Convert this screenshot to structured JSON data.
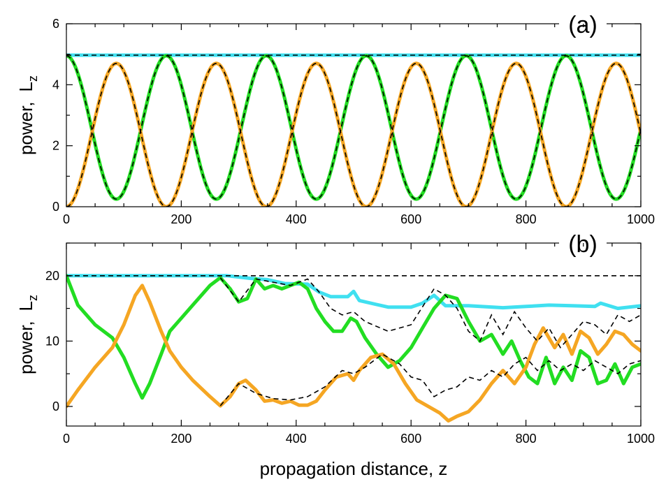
{
  "xlabel": "propagation distance,  z",
  "chart_data": [
    {
      "type": "line",
      "panel_label": "(a)",
      "ylabel_main": "power,",
      "ylabel_symbol": "L",
      "ylabel_sub": "z",
      "xlim": [
        0,
        1000
      ],
      "ylim": [
        0,
        6
      ],
      "xticks": [
        0,
        200,
        400,
        600,
        800,
        1000
      ],
      "yticks": [
        0,
        2,
        4,
        6
      ],
      "grid": false,
      "series": [
        {
          "role": "Lz",
          "color": "#40e0f0",
          "x": [
            0,
            1000
          ],
          "values": [
            4.97,
            4.97
          ]
        },
        {
          "role": "mode-1",
          "color": "#22dd22",
          "analytic": "cosine",
          "mean": 2.6,
          "amplitude": 2.35,
          "period": 174,
          "phase": 0,
          "x_range": [
            0,
            1000
          ]
        },
        {
          "role": "mode-2",
          "color": "#f5a623",
          "analytic": "cosine",
          "mean": 2.35,
          "amplitude": 2.35,
          "period": 174,
          "phase": 0.5,
          "x_range": [
            0,
            1000
          ]
        },
        {
          "role": "reference",
          "color": "#000000",
          "dashed": true,
          "of": [
            "Lz",
            "mode-1",
            "mode-2"
          ]
        }
      ]
    },
    {
      "type": "line",
      "panel_label": "(b)",
      "ylabel_main": "power,",
      "ylabel_symbol": "L",
      "ylabel_sub": "z",
      "xlim": [
        0,
        1000
      ],
      "ylim": [
        -3,
        25
      ],
      "xticks": [
        0,
        200,
        400,
        600,
        800,
        1000
      ],
      "yticks": [
        0,
        10,
        20
      ],
      "grid": false,
      "series": [
        {
          "role": "Lz",
          "color": "#40e0f0",
          "x": [
            0,
            200,
            280,
            320,
            350,
            380,
            420,
            440,
            460,
            490,
            500,
            510,
            540,
            560,
            600,
            620,
            640,
            660,
            700,
            760,
            800,
            840,
            880,
            920,
            930,
            960,
            1000
          ],
          "values": [
            20,
            20,
            20,
            19.6,
            19.4,
            18.8,
            18.7,
            17.5,
            16.8,
            16.8,
            17.6,
            16.2,
            15.6,
            15.2,
            15.2,
            15.8,
            17.0,
            15.4,
            15.4,
            15.1,
            15.3,
            15.5,
            15.4,
            15.3,
            15.8,
            15.0,
            15.4
          ]
        },
        {
          "role": "mode-1",
          "color": "#22dd22",
          "x": [
            0,
            20,
            50,
            80,
            100,
            120,
            132,
            145,
            165,
            180,
            200,
            220,
            250,
            268,
            285,
            300,
            315,
            330,
            345,
            360,
            375,
            390,
            405,
            420,
            435,
            450,
            465,
            480,
            495,
            505,
            520,
            540,
            560,
            580,
            600,
            620,
            640,
            660,
            680,
            700,
            720,
            740,
            760,
            775,
            790,
            805,
            820,
            835,
            850,
            865,
            880,
            895,
            910,
            925,
            940,
            955,
            970,
            985,
            1000
          ],
          "values": [
            20,
            15.5,
            12.5,
            10.5,
            7.5,
            3.5,
            1.3,
            3.5,
            8.0,
            11.5,
            13.5,
            15.5,
            18.5,
            19.7,
            18.0,
            16.0,
            16.5,
            19.5,
            18.0,
            18.5,
            18.0,
            18.5,
            19.0,
            18.0,
            15.0,
            13.0,
            11.5,
            11.5,
            13.5,
            13.0,
            10.5,
            8.0,
            6.0,
            7.0,
            9.0,
            12.0,
            15.0,
            17.0,
            16.5,
            13.0,
            10.0,
            11.0,
            8.0,
            10.0,
            7.0,
            4.5,
            3.5,
            7.5,
            3.5,
            6.0,
            4.0,
            8.5,
            7.5,
            3.5,
            4.0,
            6.5,
            3.5,
            6.0,
            6.5
          ]
        },
        {
          "role": "mode-2",
          "color": "#f5a623",
          "x": [
            0,
            20,
            50,
            80,
            100,
            120,
            132,
            145,
            165,
            180,
            200,
            220,
            250,
            268,
            285,
            300,
            312,
            330,
            345,
            360,
            375,
            390,
            405,
            420,
            435,
            450,
            470,
            490,
            500,
            510,
            530,
            550,
            570,
            590,
            610,
            630,
            650,
            665,
            680,
            700,
            720,
            740,
            760,
            780,
            800,
            815,
            830,
            850,
            865,
            880,
            895,
            910,
            925,
            940,
            955,
            970,
            985,
            1000
          ],
          "values": [
            0,
            2.5,
            6.0,
            9.0,
            12.5,
            17.0,
            18.5,
            16.0,
            11.5,
            8.5,
            6.0,
            4.0,
            1.5,
            0.1,
            1.5,
            3.5,
            4.0,
            2.5,
            0.8,
            1.0,
            0.5,
            0.8,
            0.2,
            0.2,
            0.8,
            2.5,
            4.5,
            5.0,
            4.0,
            5.5,
            7.5,
            8.0,
            6.5,
            3.5,
            1.0,
            0.0,
            -1.0,
            -2.2,
            -1.5,
            -0.8,
            1.0,
            3.5,
            5.5,
            3.5,
            6.0,
            9.5,
            12.0,
            9.0,
            11.0,
            8.0,
            11.5,
            10.5,
            8.0,
            9.5,
            11.5,
            11.0,
            9.5,
            8.5
          ]
        },
        {
          "role": "reference-Lz",
          "color": "#000000",
          "dashed": true,
          "x": [
            0,
            1000
          ],
          "values": [
            20,
            20
          ]
        },
        {
          "role": "reference-mode-1",
          "color": "#000000",
          "dashed": true,
          "x": [
            0,
            268,
            300,
            330,
            360,
            390,
            420,
            440,
            460,
            480,
            500,
            520,
            560,
            600,
            640,
            660,
            680,
            700,
            720,
            740,
            760,
            780,
            800,
            820,
            840,
            860,
            880,
            900,
            920,
            940,
            960,
            980,
            1000
          ],
          "values": [
            null,
            19.7,
            16.0,
            19.5,
            19.0,
            18.5,
            19.5,
            17.5,
            15.0,
            14.0,
            14.5,
            13.0,
            11.5,
            12.5,
            18.0,
            17.0,
            15.0,
            11.5,
            10.0,
            14.0,
            11.0,
            14.5,
            12.0,
            10.0,
            12.0,
            9.0,
            11.0,
            13.0,
            12.5,
            11.0,
            14.0,
            13.0,
            14.0
          ]
        },
        {
          "role": "reference-mode-2",
          "color": "#000000",
          "dashed": true,
          "x": [
            0,
            268,
            300,
            330,
            360,
            390,
            420,
            450,
            480,
            500,
            520,
            550,
            580,
            600,
            620,
            640,
            660,
            680,
            700,
            720,
            740,
            760,
            780,
            800,
            820,
            840,
            860,
            880,
            900,
            920,
            940,
            960,
            980,
            1000
          ],
          "values": [
            null,
            0.1,
            3.5,
            2.0,
            1.2,
            1.0,
            1.5,
            3.0,
            5.5,
            5.0,
            6.0,
            8.0,
            6.5,
            4.5,
            4.0,
            1.5,
            2.5,
            3.0,
            4.5,
            4.0,
            5.5,
            4.5,
            6.5,
            7.5,
            5.5,
            7.0,
            5.5,
            6.5,
            5.5,
            7.0,
            6.0,
            5.0,
            6.5,
            7.0
          ]
        }
      ]
    }
  ]
}
